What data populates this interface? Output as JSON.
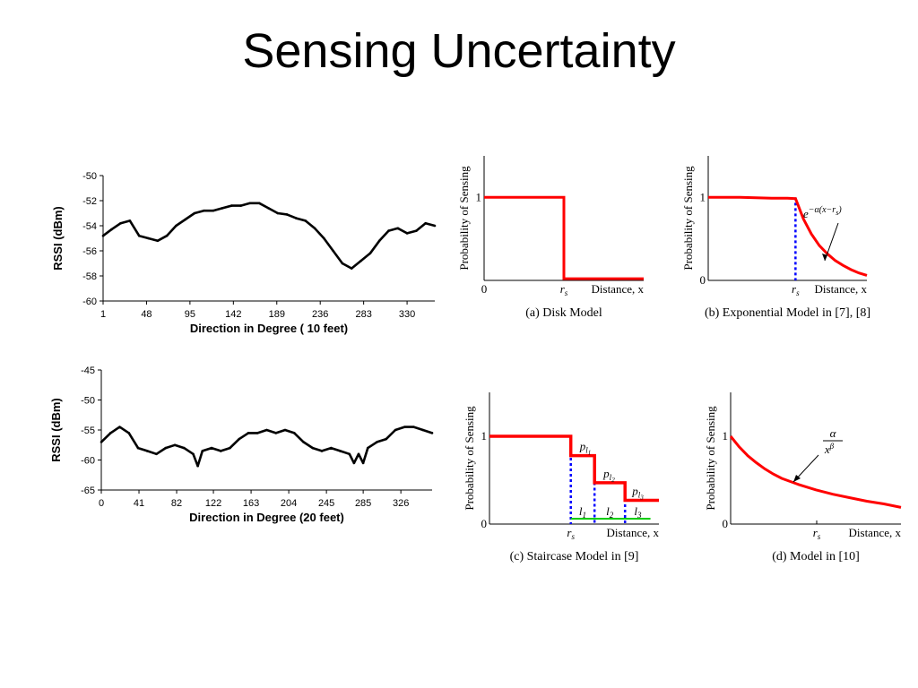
{
  "slide": {
    "title": "Sensing Uncertainty"
  },
  "colors": {
    "trace": "#000000",
    "model": "#ff0000",
    "threshold": "#0000ff",
    "segment": "#00cc00",
    "axis": "#000000"
  },
  "chart_data": [
    {
      "type": "line",
      "title": "",
      "xlabel": "Direction in Degree ( 10 feet)",
      "ylabel": "RSSI (dBm)",
      "xlim": [
        1,
        360
      ],
      "ylim": [
        -60,
        -50
      ],
      "xticks": [
        1,
        48,
        95,
        142,
        189,
        236,
        283,
        330
      ],
      "yticks": [
        -50,
        -52,
        -54,
        -56,
        -58,
        -60
      ],
      "series": [
        {
          "x": [
            1,
            10,
            20,
            30,
            40,
            50,
            60,
            70,
            80,
            90,
            100,
            110,
            120,
            130,
            140,
            150,
            160,
            170,
            180,
            190,
            200,
            210,
            220,
            230,
            240,
            250,
            260,
            270,
            280,
            290,
            300,
            310,
            320,
            330,
            340,
            350,
            360
          ],
          "y": [
            -54.8,
            -54.3,
            -53.8,
            -53.6,
            -54.8,
            -55.0,
            -55.2,
            -54.8,
            -54.0,
            -53.5,
            -53.0,
            -52.8,
            -52.8,
            -52.6,
            -52.4,
            -52.4,
            -52.2,
            -52.2,
            -52.6,
            -53.0,
            -53.1,
            -53.4,
            -53.6,
            -54.2,
            -55.0,
            -56.0,
            -57.0,
            -57.4,
            -56.8,
            -56.2,
            -55.2,
            -54.4,
            -54.2,
            -54.6,
            -54.4,
            -53.8,
            -54.0
          ]
        }
      ]
    },
    {
      "type": "line",
      "title": "",
      "xlabel": "Direction in Degree (20 feet)",
      "ylabel": "RSSI (dBm)",
      "xlim": [
        0,
        360
      ],
      "ylim": [
        -65,
        -45
      ],
      "xticks": [
        0,
        41,
        82,
        122,
        163,
        204,
        245,
        285,
        326
      ],
      "yticks": [
        -45,
        -50,
        -55,
        -60,
        -65
      ],
      "series": [
        {
          "x": [
            0,
            10,
            20,
            30,
            40,
            50,
            60,
            70,
            80,
            90,
            100,
            105,
            110,
            120,
            130,
            140,
            150,
            160,
            170,
            180,
            190,
            200,
            210,
            220,
            230,
            240,
            250,
            260,
            270,
            275,
            280,
            285,
            290,
            300,
            310,
            320,
            330,
            340,
            350,
            360
          ],
          "y": [
            -57.0,
            -55.5,
            -54.5,
            -55.5,
            -58.0,
            -58.5,
            -59.0,
            -58.0,
            -57.5,
            -58.0,
            -59.0,
            -61.0,
            -58.5,
            -58.0,
            -58.5,
            -58.0,
            -56.5,
            -55.5,
            -55.5,
            -55.0,
            -55.5,
            -55.0,
            -55.5,
            -57.0,
            -58.0,
            -58.5,
            -58.0,
            -58.5,
            -59.0,
            -60.5,
            -59.0,
            -60.5,
            -58.0,
            -57.0,
            -56.5,
            -55.0,
            -54.5,
            -54.5,
            -55.0,
            -55.5
          ]
        }
      ]
    },
    {
      "type": "line",
      "title": "(a) Disk Model",
      "xlabel": "Distance, x",
      "ylabel": "Probability of Sensing",
      "xlim": [
        0,
        1
      ],
      "ylim": [
        0,
        1.5
      ],
      "yticks": [
        "1"
      ],
      "xticks": [
        "0",
        "rs"
      ],
      "rs": 0.5,
      "series": [
        {
          "x": [
            0,
            0.5,
            0.5,
            1.0
          ],
          "y": [
            1,
            1,
            0.02,
            0.02
          ]
        }
      ]
    },
    {
      "type": "line",
      "title": "(b) Exponential Model in [7], [8]",
      "xlabel": "Distance, x",
      "ylabel": "Probability of Sensing",
      "xlim": [
        0,
        1
      ],
      "ylim": [
        0,
        1.5
      ],
      "yticks": [
        "1",
        "0"
      ],
      "xticks": [
        "rs"
      ],
      "rs": 0.55,
      "formula": "e^{-α(x-rs)}",
      "formula_parts": {
        "base": "e",
        "exponent": "−α(x−r",
        "subscript": "s",
        "close": ")"
      },
      "series": [
        {
          "x": [
            0,
            0.1,
            0.2,
            0.3,
            0.4,
            0.5,
            0.55,
            0.6,
            0.65,
            0.7,
            0.75,
            0.8,
            0.85,
            0.9,
            0.95,
            1.0
          ],
          "y": [
            1.0,
            1.0,
            1.0,
            0.995,
            0.99,
            0.99,
            0.985,
            0.74,
            0.56,
            0.42,
            0.32,
            0.24,
            0.18,
            0.13,
            0.09,
            0.06
          ]
        }
      ]
    },
    {
      "type": "line",
      "title": "(c) Staircase Model in [9]",
      "xlabel": "Distance, x",
      "ylabel": "Probability of Sensing",
      "xlim": [
        0,
        1
      ],
      "ylim": [
        0,
        1.5
      ],
      "yticks": [
        "1",
        "0"
      ],
      "xticks": [
        "rs"
      ],
      "rs": 0.48,
      "series": [
        {
          "x": [
            0,
            0.48,
            0.48,
            0.62,
            0.62,
            0.8,
            0.8,
            1.0
          ],
          "y": [
            1.0,
            1.0,
            0.78,
            0.78,
            0.47,
            0.47,
            0.27,
            0.27
          ]
        }
      ],
      "steps": [
        {
          "x": 0.48,
          "p": 0.78,
          "p_label": "p",
          "p_sub": "l",
          "p_subsub": "1"
        },
        {
          "x": 0.62,
          "p": 0.47,
          "p_label": "p",
          "p_sub": "l",
          "p_subsub": "2"
        },
        {
          "x": 0.8,
          "p": 0.27,
          "p_label": "p",
          "p_sub": "l",
          "p_subsub": "3"
        }
      ],
      "segments": [
        {
          "x0": 0.48,
          "x1": 0.62,
          "label": "l",
          "sub": "1"
        },
        {
          "x0": 0.62,
          "x1": 0.8,
          "label": "l",
          "sub": "2"
        },
        {
          "x0": 0.8,
          "x1": 0.95,
          "label": "l",
          "sub": "3"
        }
      ]
    },
    {
      "type": "line",
      "title": "(d) Model in [10]",
      "xlabel": "Distance, x",
      "ylabel": "Probability of Sensing",
      "xlim": [
        0,
        1
      ],
      "ylim": [
        0,
        1.5
      ],
      "yticks": [
        "1",
        "0"
      ],
      "xticks": [
        "rs"
      ],
      "formula": "α / x^β",
      "formula_parts": {
        "numerator": "α",
        "denominator": "x",
        "exponent": "β"
      },
      "series": [
        {
          "x": [
            0,
            0.05,
            0.1,
            0.15,
            0.2,
            0.25,
            0.3,
            0.4,
            0.5,
            0.6,
            0.7,
            0.8,
            0.9,
            1.0
          ],
          "y": [
            1.0,
            0.88,
            0.78,
            0.7,
            0.63,
            0.57,
            0.52,
            0.45,
            0.39,
            0.34,
            0.3,
            0.26,
            0.23,
            0.19
          ]
        }
      ]
    }
  ]
}
